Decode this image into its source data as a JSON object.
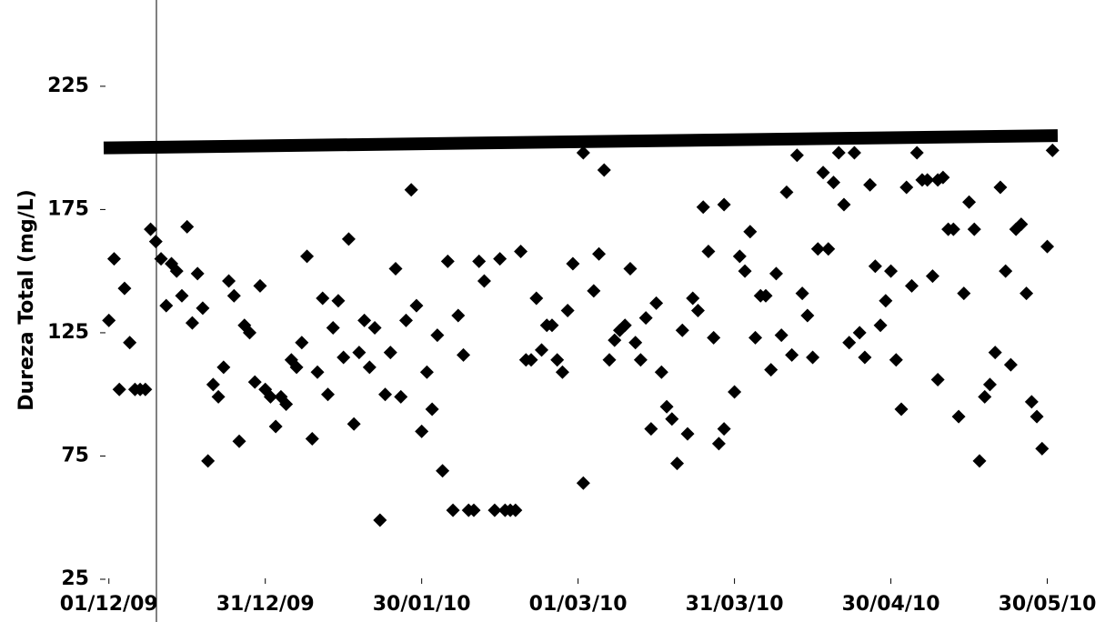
{
  "chart_data": {
    "type": "scatter",
    "ylabel": "Dureza Total (mg/L)",
    "ylim": [
      25,
      260
    ],
    "yticks": [
      25,
      75,
      125,
      175,
      225
    ],
    "xlim": [
      "2009-11-30",
      "2010-06-01"
    ],
    "xticks": [
      {
        "value": "2009-12-01",
        "label": "01/12/09"
      },
      {
        "value": "2009-12-31",
        "label": "31/12/09"
      },
      {
        "value": "2010-01-30",
        "label": "30/01/10"
      },
      {
        "value": "2010-03-01",
        "label": "01/03/10"
      },
      {
        "value": "2010-03-31",
        "label": "31/03/10"
      },
      {
        "value": "2010-04-30",
        "label": "30/04/10"
      },
      {
        "value": "2010-05-30",
        "label": "30/05/10"
      }
    ],
    "series": [
      {
        "color": "#000000",
        "style": "marker",
        "x": [
          "2009-12-01",
          "2009-12-02",
          "2009-12-03",
          "2009-12-04",
          "2009-12-05",
          "2009-12-06",
          "2009-12-07",
          "2009-12-08",
          "2009-12-09",
          "2009-12-10",
          "2009-12-11",
          "2009-12-12",
          "2009-12-13",
          "2009-12-14",
          "2009-12-15",
          "2009-12-16",
          "2009-12-17",
          "2009-12-18",
          "2009-12-19",
          "2009-12-20",
          "2009-12-21",
          "2009-12-22",
          "2009-12-23",
          "2009-12-24",
          "2009-12-25",
          "2009-12-26",
          "2009-12-27",
          "2009-12-28",
          "2009-12-29",
          "2009-12-30",
          "2009-12-31",
          "2010-01-01",
          "2010-01-02",
          "2010-01-03",
          "2010-01-04",
          "2010-01-05",
          "2010-01-06",
          "2010-01-07",
          "2010-01-08",
          "2010-01-09",
          "2010-01-10",
          "2010-01-11",
          "2010-01-12",
          "2010-01-13",
          "2010-01-14",
          "2010-01-15",
          "2010-01-16",
          "2010-01-17",
          "2010-01-18",
          "2010-01-19",
          "2010-01-20",
          "2010-01-21",
          "2010-01-22",
          "2010-01-23",
          "2010-01-24",
          "2010-01-25",
          "2010-01-26",
          "2010-01-27",
          "2010-01-28",
          "2010-01-29",
          "2010-01-30",
          "2010-01-31",
          "2010-02-01",
          "2010-02-02",
          "2010-02-03",
          "2010-02-04",
          "2010-02-05",
          "2010-02-06",
          "2010-02-07",
          "2010-02-08",
          "2010-02-09",
          "2010-02-10",
          "2010-02-11",
          "2010-02-13",
          "2010-02-14",
          "2010-02-15",
          "2010-02-16",
          "2010-02-17",
          "2010-02-18",
          "2010-02-19",
          "2010-02-20",
          "2010-02-21",
          "2010-02-22",
          "2010-02-23",
          "2010-02-24",
          "2010-02-25",
          "2010-02-26",
          "2010-02-27",
          "2010-02-28",
          "2010-03-02",
          "2010-03-02",
          "2010-03-04",
          "2010-03-05",
          "2010-03-06",
          "2010-03-07",
          "2010-03-08",
          "2010-03-09",
          "2010-03-10",
          "2010-03-11",
          "2010-03-12",
          "2010-03-13",
          "2010-03-14",
          "2010-03-15",
          "2010-03-16",
          "2010-03-17",
          "2010-03-18",
          "2010-03-19",
          "2010-03-20",
          "2010-03-21",
          "2010-03-22",
          "2010-03-23",
          "2010-03-24",
          "2010-03-25",
          "2010-03-26",
          "2010-03-27",
          "2010-03-28",
          "2010-03-29",
          "2010-03-29",
          "2010-03-31",
          "2010-04-01",
          "2010-04-02",
          "2010-04-03",
          "2010-04-04",
          "2010-04-05",
          "2010-04-06",
          "2010-04-07",
          "2010-04-08",
          "2010-04-09",
          "2010-04-10",
          "2010-04-11",
          "2010-04-12",
          "2010-04-13",
          "2010-04-14",
          "2010-04-15",
          "2010-04-16",
          "2010-04-17",
          "2010-04-18",
          "2010-04-19",
          "2010-04-20",
          "2010-04-21",
          "2010-04-22",
          "2010-04-23",
          "2010-04-24",
          "2010-04-25",
          "2010-04-26",
          "2010-04-27",
          "2010-04-28",
          "2010-04-29",
          "2010-04-30",
          "2010-05-01",
          "2010-05-02",
          "2010-05-03",
          "2010-05-04",
          "2010-05-05",
          "2010-05-06",
          "2010-05-07",
          "2010-05-08",
          "2010-05-09",
          "2010-05-09",
          "2010-05-10",
          "2010-05-11",
          "2010-05-12",
          "2010-05-13",
          "2010-05-14",
          "2010-05-15",
          "2010-05-16",
          "2010-05-17",
          "2010-05-18",
          "2010-05-19",
          "2010-05-20",
          "2010-05-21",
          "2010-05-22",
          "2010-05-23",
          "2010-05-24",
          "2010-05-25",
          "2010-05-26",
          "2010-05-27",
          "2010-05-28",
          "2010-05-29",
          "2010-05-30",
          "2010-05-31"
        ],
        "values": [
          130,
          155,
          102,
          143,
          121,
          102,
          102,
          102,
          167,
          162,
          155,
          136,
          153,
          150,
          140,
          168,
          129,
          149,
          135,
          73,
          104,
          99,
          111,
          146,
          140,
          81,
          128,
          125,
          105,
          144,
          102,
          99,
          87,
          99,
          96,
          114,
          111,
          121,
          156,
          82,
          109,
          139,
          100,
          127,
          138,
          115,
          163,
          88,
          117,
          130,
          111,
          127,
          49,
          100,
          117,
          151,
          99,
          130,
          183,
          136,
          85,
          109,
          94,
          124,
          69,
          154,
          53,
          132,
          116,
          53,
          53,
          154,
          146,
          53,
          155,
          53,
          53,
          53,
          158,
          114,
          114,
          139,
          118,
          128,
          128,
          114,
          109,
          134,
          153,
          64,
          198,
          142,
          157,
          191,
          114,
          122,
          126,
          128,
          151,
          121,
          114,
          131,
          86,
          137,
          109,
          95,
          90,
          72,
          126,
          84,
          139,
          134,
          176,
          158,
          123,
          80,
          86,
          177,
          101,
          156,
          150,
          166,
          123,
          140,
          140,
          110,
          149,
          124,
          182,
          116,
          197,
          141,
          132,
          115,
          159,
          190,
          159,
          186,
          198,
          177,
          121,
          198,
          125,
          115,
          185,
          152,
          128,
          138,
          150,
          114,
          94,
          184,
          144,
          198,
          187,
          187,
          148,
          187,
          106,
          188,
          167,
          167,
          91,
          141,
          178,
          167,
          73,
          99,
          104,
          117,
          184,
          150,
          112,
          167,
          169,
          141,
          97,
          91,
          78,
          160,
          199
        ]
      },
      {
        "color": "#000000",
        "style": "line",
        "x": [
          "2009-11-30",
          "2010-06-01"
        ],
        "values": [
          200,
          205
        ]
      }
    ]
  }
}
